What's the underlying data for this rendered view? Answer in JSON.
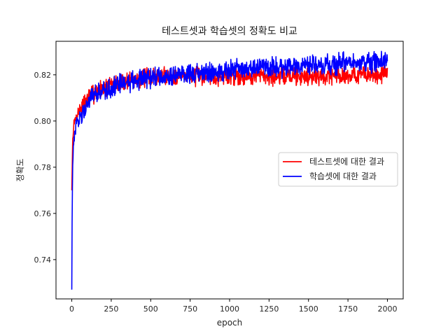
{
  "chart_data": {
    "type": "line",
    "title": "테스트셋과 학습셋의 정확도 비교",
    "xlabel": "epoch",
    "ylabel": "정확도",
    "xlim": [
      -100,
      2100
    ],
    "ylim": [
      0.723,
      0.8345
    ],
    "xticks": [
      0,
      250,
      500,
      750,
      1000,
      1250,
      1500,
      1750,
      2000
    ],
    "yticks": [
      0.74,
      0.76,
      0.78,
      0.8,
      0.82
    ],
    "ytick_labels": [
      "0.74",
      "0.76",
      "0.78",
      "0.80",
      "0.82"
    ],
    "grid": false,
    "legend_position": "center-right",
    "series": [
      {
        "name": "테스트셋에 대한 결과",
        "color": "#ff0000",
        "x": [
          0,
          5,
          10,
          20,
          35,
          50,
          75,
          100,
          150,
          200,
          250,
          300,
          350,
          400,
          450,
          500,
          600,
          700,
          800,
          900,
          1000,
          1100,
          1200,
          1300,
          1400,
          1500,
          1600,
          1700,
          1800,
          1900,
          2000
        ],
        "values": [
          0.77,
          0.789,
          0.797,
          0.8,
          0.803,
          0.805,
          0.807,
          0.81,
          0.8125,
          0.8145,
          0.8155,
          0.8165,
          0.8175,
          0.818,
          0.8185,
          0.819,
          0.8195,
          0.8198,
          0.8195,
          0.8195,
          0.8195,
          0.8195,
          0.8195,
          0.8195,
          0.8195,
          0.8195,
          0.8195,
          0.8198,
          0.82,
          0.82,
          0.8205
        ]
      },
      {
        "name": "학습셋에 대한 결과",
        "color": "#0000ff",
        "x": [
          0,
          3,
          8,
          15,
          25,
          40,
          60,
          80,
          100,
          150,
          200,
          250,
          300,
          350,
          400,
          450,
          500,
          600,
          700,
          800,
          900,
          1000,
          1100,
          1200,
          1300,
          1400,
          1500,
          1600,
          1700,
          1800,
          1900,
          2000
        ],
        "values": [
          0.727,
          0.77,
          0.785,
          0.792,
          0.797,
          0.8,
          0.803,
          0.806,
          0.808,
          0.811,
          0.813,
          0.8145,
          0.8155,
          0.8165,
          0.8175,
          0.8182,
          0.8188,
          0.8195,
          0.8203,
          0.821,
          0.8215,
          0.822,
          0.8225,
          0.823,
          0.8233,
          0.8237,
          0.824,
          0.8245,
          0.8248,
          0.825,
          0.8253,
          0.8257
        ]
      }
    ]
  }
}
